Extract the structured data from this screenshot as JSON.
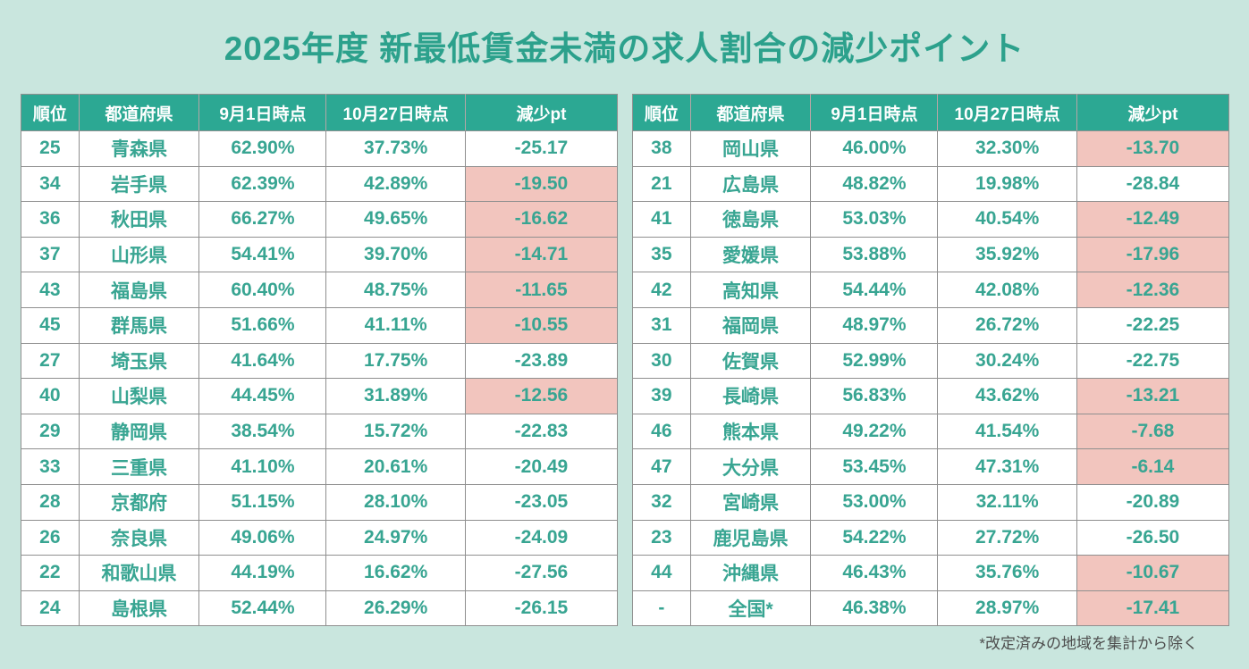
{
  "title": "2025年度 新最低賃金未満の求人割合の減少ポイント",
  "footnote": "*改定済みの地域を集計から除く",
  "colors": {
    "page_background": "#c9e6de",
    "header_background": "#2ca893",
    "header_text": "#ffffff",
    "body_text": "#38a592",
    "highlight_pink": "#f2c5be",
    "cell_border": "#8f8f8f",
    "title_text": "#2ca18c",
    "footnote_text": "#4d4d4d"
  },
  "chart_data": {
    "type": "table",
    "title": "2025年度 新最低賃金未満の求人割合の減少ポイント",
    "columns": [
      "順位",
      "都道府県",
      "9月1日時点",
      "10月27日時点",
      "減少pt"
    ],
    "column_keys": [
      "rank",
      "prefecture",
      "sep1",
      "oct27",
      "decline_pt"
    ],
    "highlight_meaning": "pink cell in 減少pt column",
    "tables": [
      {
        "name": "left",
        "rows": [
          {
            "rank": "25",
            "prefecture": "青森県",
            "sep1": "62.90%",
            "oct27": "37.73%",
            "decline_pt": "-25.17",
            "highlight": false
          },
          {
            "rank": "34",
            "prefecture": "岩手県",
            "sep1": "62.39%",
            "oct27": "42.89%",
            "decline_pt": "-19.50",
            "highlight": true
          },
          {
            "rank": "36",
            "prefecture": "秋田県",
            "sep1": "66.27%",
            "oct27": "49.65%",
            "decline_pt": "-16.62",
            "highlight": true
          },
          {
            "rank": "37",
            "prefecture": "山形県",
            "sep1": "54.41%",
            "oct27": "39.70%",
            "decline_pt": "-14.71",
            "highlight": true
          },
          {
            "rank": "43",
            "prefecture": "福島県",
            "sep1": "60.40%",
            "oct27": "48.75%",
            "decline_pt": "-11.65",
            "highlight": true
          },
          {
            "rank": "45",
            "prefecture": "群馬県",
            "sep1": "51.66%",
            "oct27": "41.11%",
            "decline_pt": "-10.55",
            "highlight": true
          },
          {
            "rank": "27",
            "prefecture": "埼玉県",
            "sep1": "41.64%",
            "oct27": "17.75%",
            "decline_pt": "-23.89",
            "highlight": false
          },
          {
            "rank": "40",
            "prefecture": "山梨県",
            "sep1": "44.45%",
            "oct27": "31.89%",
            "decline_pt": "-12.56",
            "highlight": true
          },
          {
            "rank": "29",
            "prefecture": "静岡県",
            "sep1": "38.54%",
            "oct27": "15.72%",
            "decline_pt": "-22.83",
            "highlight": false
          },
          {
            "rank": "33",
            "prefecture": "三重県",
            "sep1": "41.10%",
            "oct27": "20.61%",
            "decline_pt": "-20.49",
            "highlight": false
          },
          {
            "rank": "28",
            "prefecture": "京都府",
            "sep1": "51.15%",
            "oct27": "28.10%",
            "decline_pt": "-23.05",
            "highlight": false
          },
          {
            "rank": "26",
            "prefecture": "奈良県",
            "sep1": "49.06%",
            "oct27": "24.97%",
            "decline_pt": "-24.09",
            "highlight": false
          },
          {
            "rank": "22",
            "prefecture": "和歌山県",
            "sep1": "44.19%",
            "oct27": "16.62%",
            "decline_pt": "-27.56",
            "highlight": false
          },
          {
            "rank": "24",
            "prefecture": "島根県",
            "sep1": "52.44%",
            "oct27": "26.29%",
            "decline_pt": "-26.15",
            "highlight": false
          }
        ]
      },
      {
        "name": "right",
        "rows": [
          {
            "rank": "38",
            "prefecture": "岡山県",
            "sep1": "46.00%",
            "oct27": "32.30%",
            "decline_pt": "-13.70",
            "highlight": true
          },
          {
            "rank": "21",
            "prefecture": "広島県",
            "sep1": "48.82%",
            "oct27": "19.98%",
            "decline_pt": "-28.84",
            "highlight": false
          },
          {
            "rank": "41",
            "prefecture": "徳島県",
            "sep1": "53.03%",
            "oct27": "40.54%",
            "decline_pt": "-12.49",
            "highlight": true
          },
          {
            "rank": "35",
            "prefecture": "愛媛県",
            "sep1": "53.88%",
            "oct27": "35.92%",
            "decline_pt": "-17.96",
            "highlight": true
          },
          {
            "rank": "42",
            "prefecture": "高知県",
            "sep1": "54.44%",
            "oct27": "42.08%",
            "decline_pt": "-12.36",
            "highlight": true
          },
          {
            "rank": "31",
            "prefecture": "福岡県",
            "sep1": "48.97%",
            "oct27": "26.72%",
            "decline_pt": "-22.25",
            "highlight": false
          },
          {
            "rank": "30",
            "prefecture": "佐賀県",
            "sep1": "52.99%",
            "oct27": "30.24%",
            "decline_pt": "-22.75",
            "highlight": false
          },
          {
            "rank": "39",
            "prefecture": "長崎県",
            "sep1": "56.83%",
            "oct27": "43.62%",
            "decline_pt": "-13.21",
            "highlight": true
          },
          {
            "rank": "46",
            "prefecture": "熊本県",
            "sep1": "49.22%",
            "oct27": "41.54%",
            "decline_pt": "-7.68",
            "highlight": true
          },
          {
            "rank": "47",
            "prefecture": "大分県",
            "sep1": "53.45%",
            "oct27": "47.31%",
            "decline_pt": "-6.14",
            "highlight": true
          },
          {
            "rank": "32",
            "prefecture": "宮崎県",
            "sep1": "53.00%",
            "oct27": "32.11%",
            "decline_pt": "-20.89",
            "highlight": false
          },
          {
            "rank": "23",
            "prefecture": "鹿児島県",
            "sep1": "54.22%",
            "oct27": "27.72%",
            "decline_pt": "-26.50",
            "highlight": false
          },
          {
            "rank": "44",
            "prefecture": "沖縄県",
            "sep1": "46.43%",
            "oct27": "35.76%",
            "decline_pt": "-10.67",
            "highlight": true
          },
          {
            "rank": "-",
            "prefecture": "全国*",
            "sep1": "46.38%",
            "oct27": "28.97%",
            "decline_pt": "-17.41",
            "highlight": true
          }
        ]
      }
    ]
  }
}
